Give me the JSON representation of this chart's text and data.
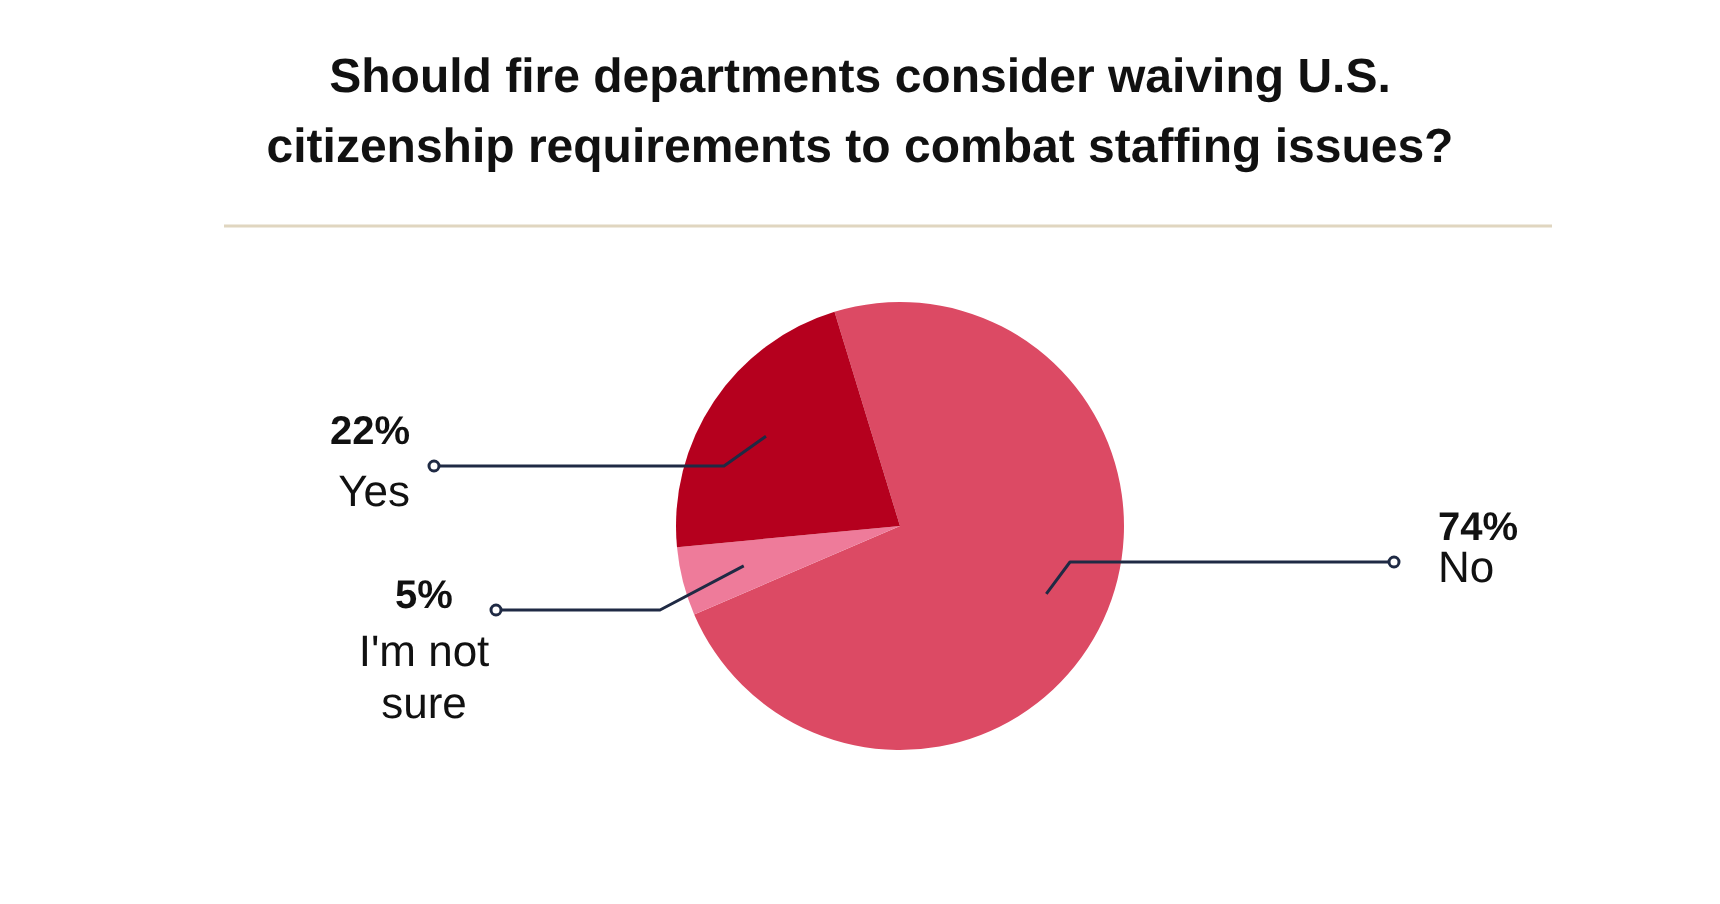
{
  "chart_data": {
    "type": "pie",
    "title": "Should fire departments consider waiving U.S. citizenship requirements to combat staffing issues?",
    "categories": [
      "No",
      "I'm not sure",
      "Yes"
    ],
    "values": [
      74,
      5,
      22
    ],
    "value_labels": [
      "74%",
      "5%",
      "22%"
    ],
    "colors": [
      "#dc4a64",
      "#ee7b9a",
      "#b5001e"
    ]
  }
}
